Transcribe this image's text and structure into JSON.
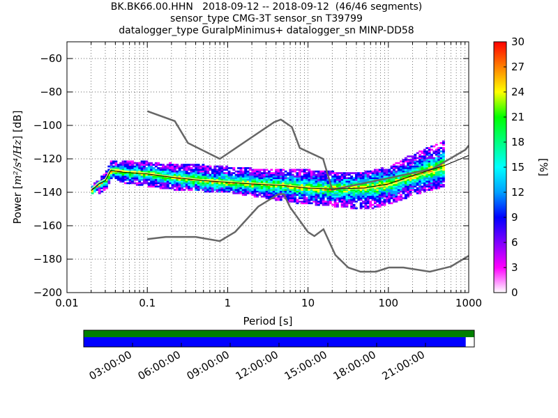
{
  "title": {
    "line1": "BK.BK66.00.HHN   2018-09-12 -- 2018-09-12  (46/46 segments)",
    "line2": "sensor_type CMG-3T sensor_sn T39799",
    "line3": "datalogger_type GuralpMinimus+ datalogger_sn MINP-DD58"
  },
  "chart_data": {
    "type": "heatmap",
    "xlabel": "Period [s]",
    "ylabel_prefix": "Power [",
    "ylabel_math": "m²/s⁴/Hz",
    "ylabel_suffix": "] [dB]",
    "x_scale": "log",
    "xlim": [
      0.01,
      1000
    ],
    "ylim": [
      -200,
      -50
    ],
    "x_ticks": [
      0.01,
      0.1,
      1,
      10,
      100,
      1000
    ],
    "x_tick_labels": [
      "0.01",
      "0.1",
      "1",
      "10",
      "100",
      "1000"
    ],
    "y_ticks": [
      -200,
      -180,
      -160,
      -140,
      -120,
      -100,
      -80,
      -60
    ],
    "y_tick_labels": [
      "−200",
      "−180",
      "−160",
      "−140",
      "−120",
      "−100",
      "−80",
      "−60"
    ],
    "grid": true,
    "colorbar": {
      "label": "[%]",
      "range": [
        0,
        30
      ],
      "ticks": [
        0,
        3,
        6,
        9,
        12,
        15,
        18,
        21,
        24,
        27,
        30
      ],
      "tick_labels": [
        "0",
        "3",
        "6",
        "9",
        "12",
        "15",
        "18",
        "21",
        "24",
        "27",
        "30"
      ],
      "colors": [
        "#ffffff",
        "#ff00ff",
        "#8000ff",
        "#0000ff",
        "#00a0ff",
        "#00ffff",
        "#00ff80",
        "#00ff00",
        "#ffff00",
        "#ff8000",
        "#ff0000"
      ]
    },
    "noise_model_high": {
      "x": [
        0.1,
        0.22,
        0.32,
        0.8,
        3.8,
        4.6,
        6.3,
        7.9,
        15.4,
        20,
        354.8,
        912,
        1000
      ],
      "y": [
        -91.5,
        -97.4,
        -110.5,
        -120,
        -98,
        -96.5,
        -101,
        -113.5,
        -120,
        -138.5,
        -126,
        -114.5,
        -112
      ]
    },
    "noise_model_low": {
      "x": [
        0.1,
        0.17,
        0.4,
        0.8,
        1.24,
        2.4,
        4.3,
        5.0,
        6.0,
        10.0,
        12.0,
        15.6,
        21.9,
        31.6,
        45,
        70,
        101,
        154,
        328,
        600,
        1000
      ],
      "y": [
        -168,
        -166.7,
        -166.7,
        -169.2,
        -163.7,
        -148.6,
        -141.1,
        -141.1,
        -149,
        -163.8,
        -166.2,
        -162.1,
        -177.5,
        -185,
        -187.5,
        -187.5,
        -185,
        -185,
        -187.5,
        -184.4,
        -178
      ]
    },
    "mean_psd": {
      "x": [
        0.02,
        0.025,
        0.03,
        0.035,
        0.05,
        0.1,
        0.2,
        0.5,
        1,
        2,
        5,
        10,
        20,
        50,
        100,
        200,
        500,
        1000
      ],
      "y": [
        -139,
        -135,
        -133,
        -127,
        -128,
        -129,
        -131,
        -133,
        -134,
        -135,
        -136,
        -137.5,
        -138,
        -137.5,
        -135,
        -130,
        -124,
        -118
      ]
    },
    "mode_psd": {
      "x": [
        0.02,
        0.025,
        0.03,
        0.035,
        0.05,
        0.1,
        0.2,
        0.5,
        1,
        2,
        5,
        10,
        20,
        50,
        100,
        200,
        500
      ],
      "y": [
        -138,
        -134,
        -132,
        -126,
        -127,
        -128.5,
        -130.5,
        -132.5,
        -133.5,
        -134.5,
        -135.5,
        -137,
        -138,
        -138,
        -136,
        -131,
        -126
      ]
    },
    "psd_band": {
      "x": [
        0.02,
        0.025,
        0.03,
        0.035,
        0.05,
        0.1,
        0.2,
        0.5,
        1,
        2,
        5,
        10,
        20,
        50,
        100,
        200,
        500
      ],
      "upper": [
        -135,
        -132,
        -127,
        -121,
        -121,
        -122,
        -123,
        -124,
        -125,
        -126,
        -126,
        -127,
        -128,
        -128,
        -125,
        -117,
        -109
      ],
      "lower": [
        -141,
        -140,
        -137,
        -131,
        -134,
        -136,
        -138,
        -139,
        -140,
        -142,
        -145,
        -147,
        -148,
        -150,
        -147,
        -141,
        -136
      ]
    },
    "time_axis": {
      "labels": [
        "03:00:00",
        "06:00:00",
        "09:00:00",
        "12:00:00",
        "15:00:00",
        "18:00:00",
        "21:00:00"
      ],
      "hours": [
        3,
        6,
        9,
        12,
        15,
        18,
        21
      ],
      "range_hours": [
        0,
        24
      ],
      "data_coverage_fraction": 0.978
    }
  }
}
